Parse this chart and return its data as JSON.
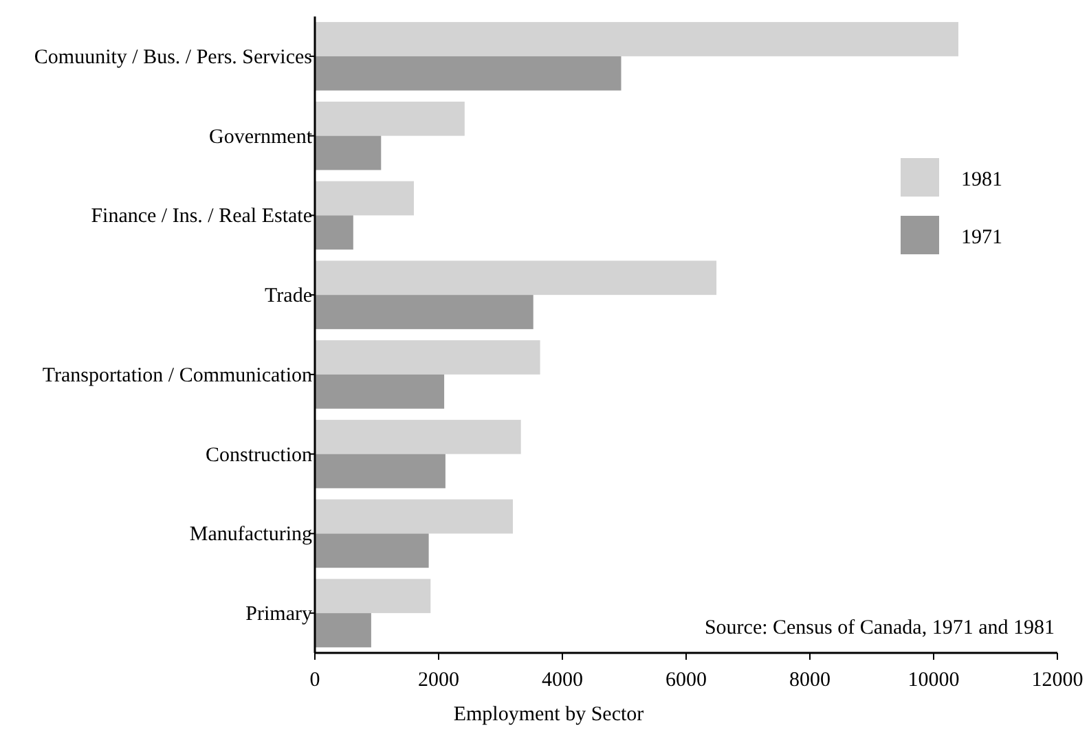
{
  "chart_data": {
    "type": "bar",
    "orientation": "horizontal",
    "xlabel": "Employment by Sector",
    "categories": [
      "Comuunity / Bus. / Pers. Services",
      "Government",
      "Finance / Ins. / Real Estate",
      "Trade",
      "Transportation / Communication",
      "Construction",
      "Manufacturing",
      "Primary"
    ],
    "series": [
      {
        "name": "1981",
        "color": "#d3d3d3",
        "values": [
          10400,
          2420,
          1600,
          6490,
          3640,
          3330,
          3200,
          1870
        ]
      },
      {
        "name": "1971",
        "color": "#999999",
        "values": [
          4950,
          1070,
          620,
          3530,
          2090,
          2110,
          1840,
          910
        ]
      }
    ],
    "xlim": [
      0,
      12000
    ],
    "xticks": [
      0,
      2000,
      4000,
      6000,
      8000,
      10000,
      12000
    ],
    "legend": "right",
    "grid": false,
    "annotations": [
      "Source:  Census of Canada, 1971 and 1981"
    ]
  }
}
